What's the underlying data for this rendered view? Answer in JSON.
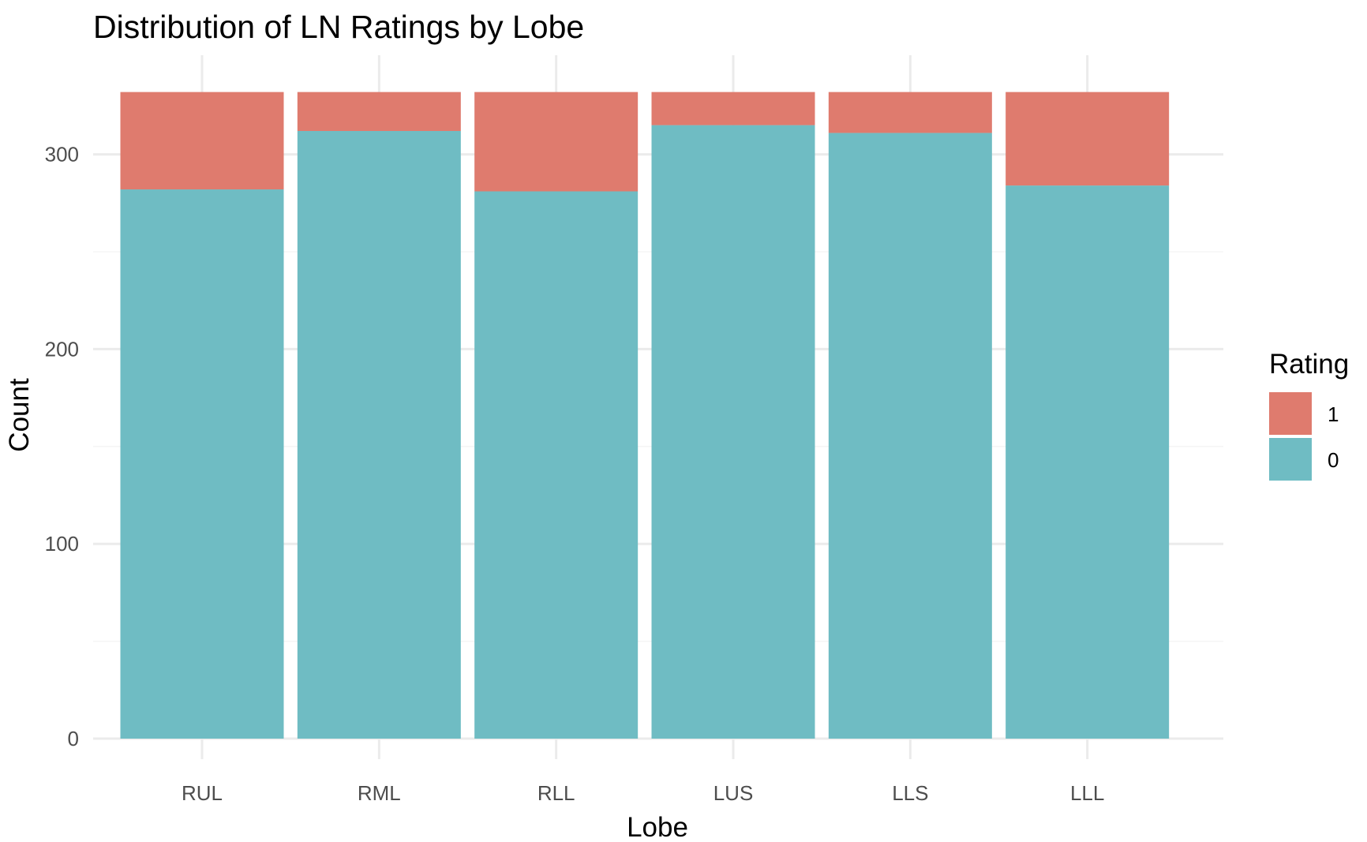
{
  "chart_data": {
    "type": "bar",
    "stacked": true,
    "title": "Distribution of LN Ratings by Lobe",
    "xlabel": "Lobe",
    "ylabel": "Count",
    "categories": [
      "RUL",
      "RML",
      "RLL",
      "LUS",
      "LLS",
      "LLL"
    ],
    "series": [
      {
        "name": "0",
        "color": "#6FBCC3",
        "values": [
          282,
          312,
          281,
          315,
          311,
          284
        ]
      },
      {
        "name": "1",
        "color": "#DF7B6E",
        "values": [
          50,
          20,
          51,
          17,
          21,
          48
        ]
      }
    ],
    "ylim": [
      0,
      332
    ],
    "y_ticks": [
      0,
      100,
      200,
      300
    ],
    "grid": true,
    "legend": {
      "title": "Rating",
      "position": "right",
      "order": [
        "1",
        "0"
      ]
    }
  }
}
